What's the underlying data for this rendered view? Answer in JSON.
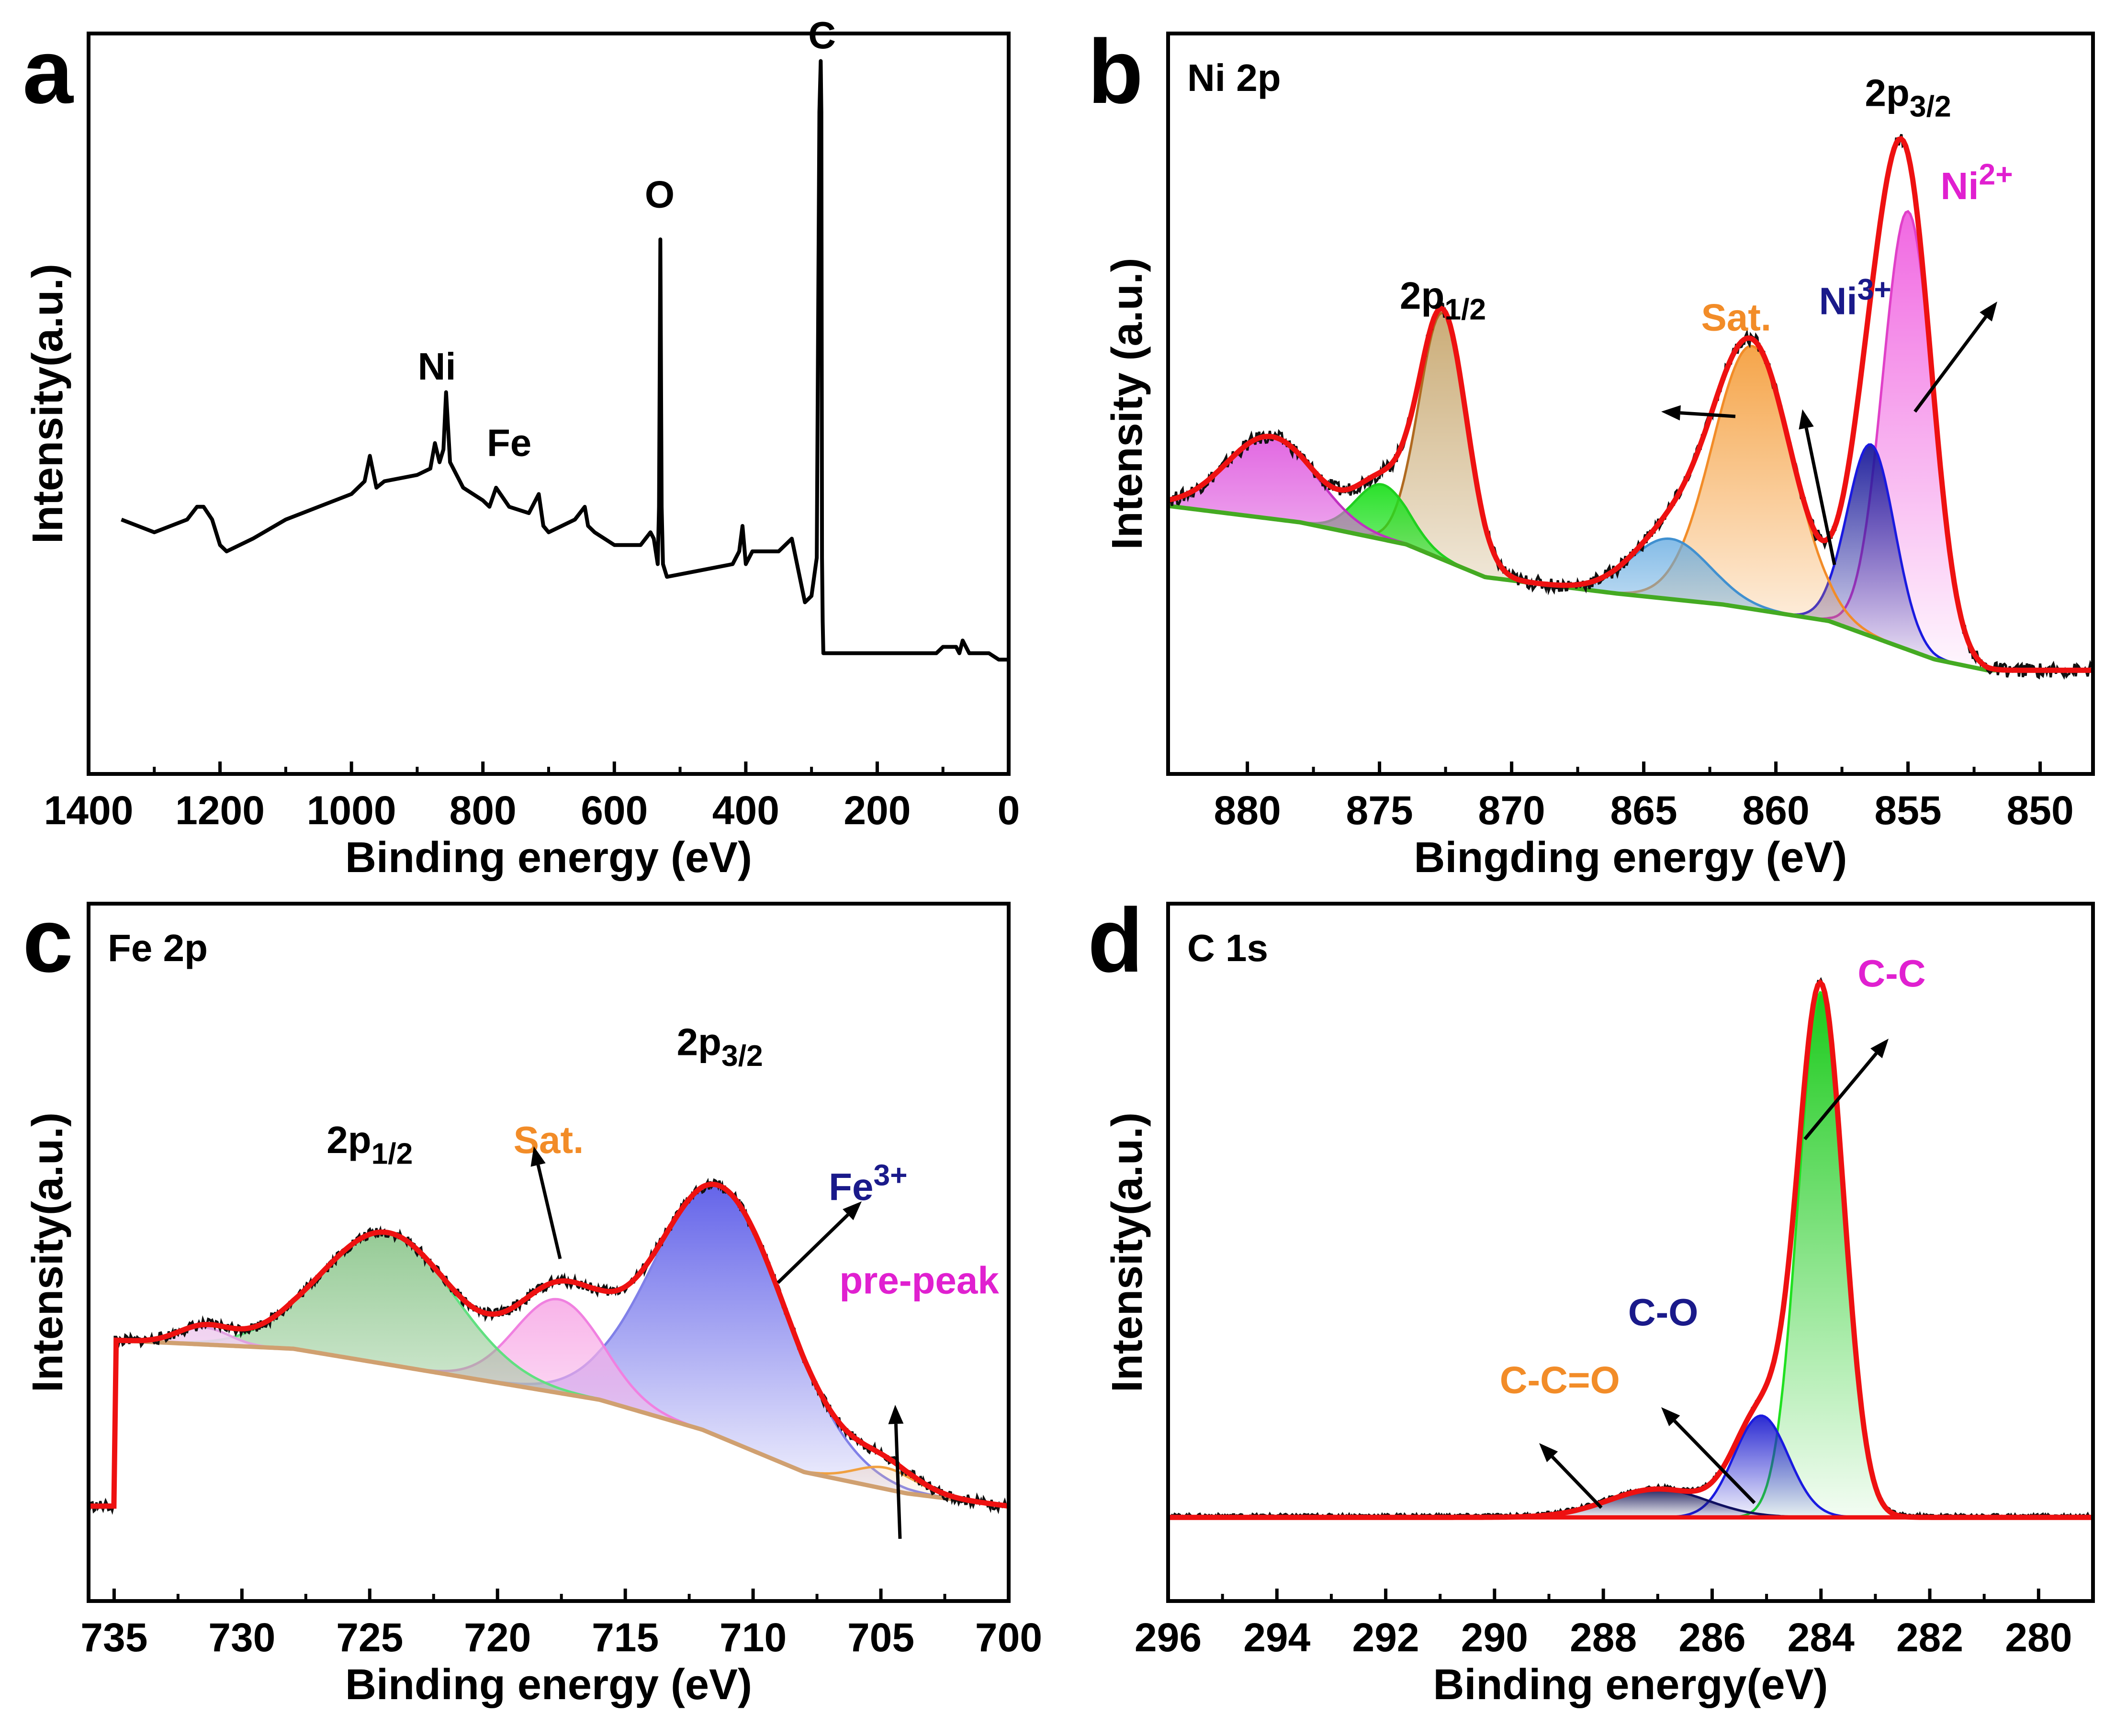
{
  "figure": {
    "panel_letters": [
      "a",
      "b",
      "c",
      "d"
    ]
  },
  "chart_data": [
    {
      "id": "a",
      "type": "line",
      "title": "",
      "xlabel": "Binding energy (eV)",
      "ylabel": "Intensity(a.u.)",
      "xlim": [
        1400,
        0
      ],
      "ylim": [
        0,
        100
      ],
      "xticks": [
        1400,
        1200,
        1000,
        800,
        600,
        400,
        200,
        0
      ],
      "series": [
        {
          "name": "survey",
          "color": "#000000",
          "x": [
            1350,
            1325,
            1300,
            1275,
            1250,
            1235,
            1225,
            1212,
            1200,
            1190,
            1150,
            1100,
            1050,
            1000,
            980,
            972,
            962,
            950,
            900,
            880,
            873,
            866,
            860,
            856,
            850,
            830,
            800,
            790,
            780,
            760,
            730,
            715,
            708,
            700,
            660,
            645,
            640,
            630,
            600,
            560,
            545,
            540,
            534,
            532,
            530,
            528,
            526,
            520,
            470,
            420,
            410,
            405,
            400,
            395,
            390,
            350,
            330,
            320,
            310,
            300,
            292,
            288,
            286,
            285,
            284,
            283,
            282,
            280,
            270,
            220,
            150,
            110,
            100,
            80,
            75,
            70,
            60,
            30,
            15,
            0
          ],
          "values": [
            26,
            25,
            24,
            25,
            26,
            28,
            28,
            26,
            22,
            21,
            23,
            26,
            28,
            30,
            32,
            36,
            31,
            32,
            33,
            34,
            38,
            35,
            37,
            46,
            35,
            31,
            29,
            28,
            31,
            28,
            27,
            30,
            25,
            24,
            26,
            28,
            25,
            24,
            22,
            22,
            24,
            23,
            19,
            28,
            70,
            28,
            19,
            17,
            18,
            19,
            21,
            25,
            19,
            20,
            21,
            21,
            23,
            18,
            13,
            14,
            20,
            90,
            98,
            90,
            20,
            10,
            5,
            5,
            5,
            5,
            5,
            5,
            6,
            6,
            5,
            7,
            5,
            5,
            4,
            4
          ]
        }
      ],
      "annotations": [
        {
          "text": "C",
          "x": 284,
          "y": 100
        },
        {
          "text": "O",
          "x": 531,
          "y": 75
        },
        {
          "text": "Ni",
          "x": 870,
          "y": 48
        },
        {
          "text": "Fe",
          "x": 760,
          "y": 36
        }
      ]
    },
    {
      "id": "b",
      "type": "line",
      "title": "Ni 2p",
      "xlabel": "Bingding energy (eV)",
      "ylabel": "Intensity (a.u.)",
      "xlim": [
        883,
        848
      ],
      "ylim": [
        0,
        100
      ],
      "xticks": [
        880,
        875,
        870,
        865,
        860,
        855,
        850
      ],
      "components": [
        {
          "name": "Ni2+ 2p3/2",
          "center": 855.0,
          "height": 80,
          "width": 0.95,
          "color": "#e040c8",
          "fill": "#f060e0"
        },
        {
          "name": "Ni3+ 2p3/2",
          "center": 856.4,
          "height": 35,
          "width": 0.9,
          "color": "#1a1ae0",
          "fill": "#1a1a9a"
        },
        {
          "name": "Sat. main",
          "center": 860.9,
          "height": 48,
          "width": 1.5,
          "color": "#f28c28",
          "fill": "#f5a040"
        },
        {
          "name": "Sat. minor",
          "center": 864.0,
          "height": 11,
          "width": 1.5,
          "color": "#4090d0",
          "fill": "#60a8e0"
        },
        {
          "name": "2p1/2 main",
          "center": 872.6,
          "height": 45,
          "width": 0.9,
          "color": "#b06a20",
          "fill": "#c8a870"
        },
        {
          "name": "2p1/2 green",
          "center": 874.9,
          "height": 10,
          "width": 1.0,
          "color": "#20d020",
          "fill": "#20e020"
        },
        {
          "name": "2p1/2 sat.",
          "center": 879.1,
          "height": 15,
          "width": 1.7,
          "color": "#c030c0",
          "fill": "#e060e0"
        }
      ],
      "background": {
        "name": "background",
        "color": "#44aa22",
        "x": [
          883,
          878,
          874,
          871,
          866,
          862,
          858,
          854,
          852,
          848
        ],
        "values": [
          30,
          27,
          23,
          17,
          14,
          12,
          9,
          2,
          0,
          0
        ]
      },
      "envelope_color": "#ee1111",
      "raw_color": "#111111",
      "annotations": [
        {
          "text": "2p",
          "sub": "3/2",
          "x": 855,
          "y": 103
        },
        {
          "text": "2p",
          "sub": "1/2",
          "x": 872.6,
          "y": 66
        },
        {
          "text": "Sat.",
          "x": 861.5,
          "y": 62,
          "color": "#f28c28"
        },
        {
          "text": "Ni",
          "sup": "3+",
          "x": 857,
          "y": 65,
          "color": "#1a1a8a"
        },
        {
          "text": "Ni",
          "sup": "2+",
          "x": 852.4,
          "y": 86,
          "color": "#e020d0"
        }
      ]
    },
    {
      "id": "c",
      "type": "line",
      "title": "Fe 2p",
      "xlabel": "Binding energy (eV)",
      "ylabel": "Intensity(a.u.)",
      "xlim": [
        736,
        700
      ],
      "ylim": [
        0,
        100
      ],
      "xticks": [
        735,
        730,
        725,
        720,
        715,
        710,
        705,
        700
      ],
      "components": [
        {
          "name": "Fe3+ 2p3/2",
          "center": 711.3,
          "height": 59,
          "width": 2.6,
          "color": "#8080e8",
          "fill": "#5c5ce8"
        },
        {
          "name": "Sat.",
          "center": 717.6,
          "height": 22,
          "width": 1.7,
          "color": "#f080e0",
          "fill": "#f8b0e8"
        },
        {
          "name": "2p1/2",
          "center": 724.3,
          "height": 31,
          "width": 2.6,
          "color": "#60e080",
          "fill": "#90c890"
        },
        {
          "name": "2p1/2 minor",
          "center": 731.5,
          "height": 4,
          "width": 1.0,
          "color": "#e0a0e0",
          "fill": "#f0d0f0"
        },
        {
          "name": "pre-peak",
          "center": 704.8,
          "height": 5,
          "width": 1.2,
          "color": "#f0a040",
          "fill": "#f8c890"
        }
      ],
      "background": {
        "name": "background",
        "color": "#d0a070",
        "x": [
          735,
          728,
          724,
          720,
          716,
          712,
          708,
          704,
          700
        ],
        "values": [
          40,
          38,
          34,
          30,
          26,
          19,
          9,
          4,
          1
        ]
      },
      "envelope_color": "#ee1111",
      "raw_color": "#111111",
      "annotations": [
        {
          "text": "2p",
          "sub": "3/2",
          "x": 711.3,
          "y": 107
        },
        {
          "text": "2p",
          "sub": "1/2",
          "x": 725,
          "y": 84
        },
        {
          "text": "Sat.",
          "x": 718,
          "y": 84,
          "color": "#f28c28"
        },
        {
          "text": "Fe",
          "sup": "3+",
          "x": 705.5,
          "y": 73,
          "color": "#1a1a8a"
        },
        {
          "text": "pre-peak",
          "x": 703.5,
          "y": 51,
          "color": "#e020d0"
        }
      ]
    },
    {
      "id": "d",
      "type": "line",
      "title": "C 1s",
      "xlabel": "Binding energy(eV)",
      "ylabel": "Intensity(a.u.)",
      "xlim": [
        296,
        279
      ],
      "ylim": [
        0,
        100
      ],
      "xticks": [
        296,
        294,
        292,
        290,
        288,
        286,
        284,
        282,
        280
      ],
      "components": [
        {
          "name": "C-C",
          "center": 284.0,
          "height": 93,
          "width": 0.42,
          "color": "#20e020",
          "fill": "#10c810"
        },
        {
          "name": "C-O",
          "center": 285.1,
          "height": 18,
          "width": 0.5,
          "color": "#1a1ae0",
          "fill": "#2020d0"
        },
        {
          "name": "C-C=O",
          "center": 287.0,
          "height": 5,
          "width": 0.9,
          "color": "#101060",
          "fill": "#1a1a5a"
        }
      ],
      "background": {
        "name": "background",
        "color": "#ee1111",
        "x": [
          296,
          290,
          288,
          286,
          284,
          282,
          279
        ],
        "values": [
          0,
          0,
          0,
          0,
          0,
          0,
          0
        ]
      },
      "envelope_color": "#ee1111",
      "raw_color": "#111111",
      "annotations": [
        {
          "text": "C-C",
          "x": 282.7,
          "y": 94,
          "color": "#e020d0"
        },
        {
          "text": "C-O",
          "x": 286.9,
          "y": 34,
          "color": "#1a1a8a"
        },
        {
          "text": "C-C=O",
          "x": 288.8,
          "y": 22,
          "color": "#f28c28"
        }
      ]
    }
  ]
}
